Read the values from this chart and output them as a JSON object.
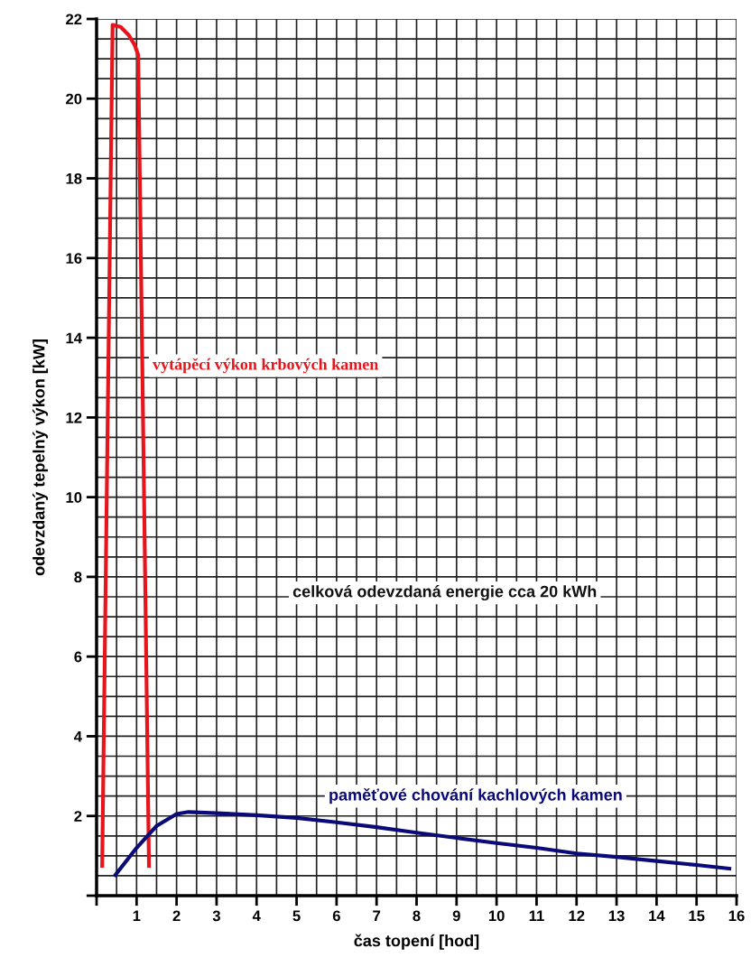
{
  "chart_data": {
    "type": "line",
    "xlabel": "čas topení [hod]",
    "ylabel": "odevzdaný tepelný výkon [kW]",
    "xlim": [
      0,
      16
    ],
    "ylim": [
      0,
      22
    ],
    "xticks": [
      {
        "value": 0,
        "label": null
      },
      1,
      2,
      3,
      4,
      5,
      6,
      7,
      8,
      9,
      10,
      11,
      12,
      13,
      14,
      15,
      16
    ],
    "yticks": [
      {
        "value": 0,
        "label": null
      },
      2,
      4,
      6,
      8,
      10,
      12,
      14,
      16,
      18,
      20,
      22
    ],
    "grid": true,
    "legend": false,
    "marker": "none",
    "line_style": "solid",
    "series": [
      {
        "name": "vytápěcí výkon krbových kamen",
        "color": "#e8141c",
        "x": [
          0.14,
          0.4,
          0.6,
          0.8,
          0.95,
          1.04,
          1.31
        ],
        "values": [
          0.75,
          21.85,
          21.8,
          21.6,
          21.35,
          21.1,
          0.75
        ]
      },
      {
        "name": "paměťové chování kachlových kamen",
        "color": "#0a0a78",
        "x": [
          0.47,
          1.0,
          1.5,
          2.0,
          2.3,
          3,
          4,
          5,
          6,
          7,
          8,
          9,
          10,
          11,
          12,
          13,
          14,
          15,
          15.82
        ],
        "values": [
          0.52,
          1.2,
          1.75,
          2.05,
          2.1,
          2.07,
          2.02,
          1.95,
          1.84,
          1.72,
          1.58,
          1.45,
          1.32,
          1.2,
          1.06,
          0.97,
          0.87,
          0.77,
          0.68
        ]
      }
    ],
    "annotations": [
      "celková odevzdaná energie cca 20 kWh"
    ]
  }
}
